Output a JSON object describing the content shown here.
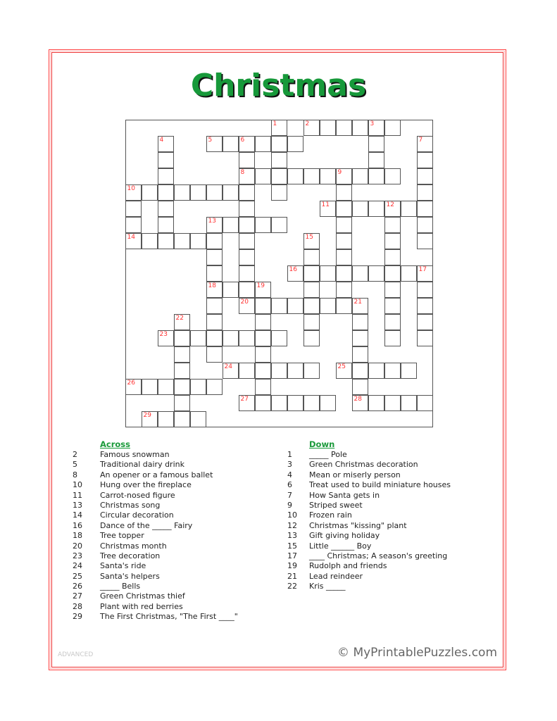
{
  "title": "Christmas",
  "colors": {
    "border": "#ee3333",
    "title": "#17993a",
    "numbers": "#ff3333",
    "heading": "#1a9a3a"
  },
  "puzzle": {
    "grid": [
      ".........#.######..",
      "..#..######....#..#",
      "..#....#.#.....#..#",
      "..#....##########.#",
      "########.#...#....#",
      "#.#....#....#######",
      "#.#..#####...#..#.#",
      "######.#...#.#..#.#",
      ".....#.#...#.#..#..",
      ".....#.#..#########",
      ".....####..#.#..#.#",
      ".....#.########.#.#",
      "...#.#..#..#..#.#.#",
      "..########.#..#.#.#",
      "...#.#..#.....#....",
      "...#..######.#####.",
      "######..#.....#....",
      "...#...######.#####",
      ".####.............."
    ],
    "numbers": [
      {
        "n": "1",
        "row": 0,
        "col": 9
      },
      {
        "n": "2",
        "row": 0,
        "col": 11
      },
      {
        "n": "3",
        "row": 0,
        "col": 15
      },
      {
        "n": "4",
        "row": 1,
        "col": 2
      },
      {
        "n": "5",
        "row": 1,
        "col": 5
      },
      {
        "n": "6",
        "row": 1,
        "col": 7
      },
      {
        "n": "7",
        "row": 1,
        "col": 18
      },
      {
        "n": "8",
        "row": 3,
        "col": 7
      },
      {
        "n": "9",
        "row": 3,
        "col": 13
      },
      {
        "n": "10",
        "row": 4,
        "col": 0
      },
      {
        "n": "11",
        "row": 5,
        "col": 12
      },
      {
        "n": "12",
        "row": 5,
        "col": 16
      },
      {
        "n": "13",
        "row": 6,
        "col": 5
      },
      {
        "n": "14",
        "row": 7,
        "col": 0
      },
      {
        "n": "15",
        "row": 7,
        "col": 11
      },
      {
        "n": "16",
        "row": 9,
        "col": 10
      },
      {
        "n": "17",
        "row": 9,
        "col": 18
      },
      {
        "n": "18",
        "row": 10,
        "col": 5
      },
      {
        "n": "19",
        "row": 10,
        "col": 8
      },
      {
        "n": "20",
        "row": 11,
        "col": 7
      },
      {
        "n": "21",
        "row": 11,
        "col": 14
      },
      {
        "n": "22",
        "row": 12,
        "col": 3
      },
      {
        "n": "23",
        "row": 13,
        "col": 2
      },
      {
        "n": "24",
        "row": 15,
        "col": 6
      },
      {
        "n": "25",
        "row": 15,
        "col": 13
      },
      {
        "n": "26",
        "row": 16,
        "col": 0
      },
      {
        "n": "27",
        "row": 17,
        "col": 7
      },
      {
        "n": "28",
        "row": 17,
        "col": 14
      },
      {
        "n": "29",
        "row": 18,
        "col": 1
      }
    ]
  },
  "across": {
    "heading": "Across",
    "clues": [
      {
        "n": "2",
        "text": "Famous snowman"
      },
      {
        "n": "5",
        "text": "Traditional dairy drink"
      },
      {
        "n": "8",
        "text": "An opener or a famous ballet"
      },
      {
        "n": "10",
        "text": "Hung over the fireplace"
      },
      {
        "n": "11",
        "text": "Carrot-nosed figure"
      },
      {
        "n": "13",
        "text": "Christmas song"
      },
      {
        "n": "14",
        "text": "Circular decoration"
      },
      {
        "n": "16",
        "text": "Dance of the _____ Fairy"
      },
      {
        "n": "18",
        "text": "Tree topper"
      },
      {
        "n": "20",
        "text": "Christmas month"
      },
      {
        "n": "23",
        "text": "Tree decoration"
      },
      {
        "n": "24",
        "text": "Santa's ride"
      },
      {
        "n": "25",
        "text": "Santa's helpers"
      },
      {
        "n": "26",
        "text": "_____ Bells"
      },
      {
        "n": "27",
        "text": "Green Christmas thief"
      },
      {
        "n": "28",
        "text": "Plant with red berries"
      },
      {
        "n": "29",
        "text": "The First Christmas, \"The First ____\""
      }
    ]
  },
  "down": {
    "heading": "Down",
    "clues": [
      {
        "n": "1",
        "text": "_____ Pole"
      },
      {
        "n": "3",
        "text": "Green Christmas decoration"
      },
      {
        "n": "4",
        "text": "Mean or miserly person"
      },
      {
        "n": "6",
        "text": "Treat used to build miniature houses"
      },
      {
        "n": "7",
        "text": "How Santa gets in"
      },
      {
        "n": "9",
        "text": "Striped sweet"
      },
      {
        "n": "10",
        "text": "Frozen rain"
      },
      {
        "n": "12",
        "text": "Christmas \"kissing\" plant"
      },
      {
        "n": "13",
        "text": "Gift giving holiday"
      },
      {
        "n": "15",
        "text": "Little ______ Boy"
      },
      {
        "n": "17",
        "text": "____ Christmas; A season's greeting"
      },
      {
        "n": "19",
        "text": "Rudolph and friends"
      },
      {
        "n": "21",
        "text": "Lead reindeer"
      },
      {
        "n": "22",
        "text": "Kris _____"
      }
    ]
  },
  "footer": {
    "level": "ADVANCED",
    "copyright": "© MyPrintablePuzzles.com"
  }
}
